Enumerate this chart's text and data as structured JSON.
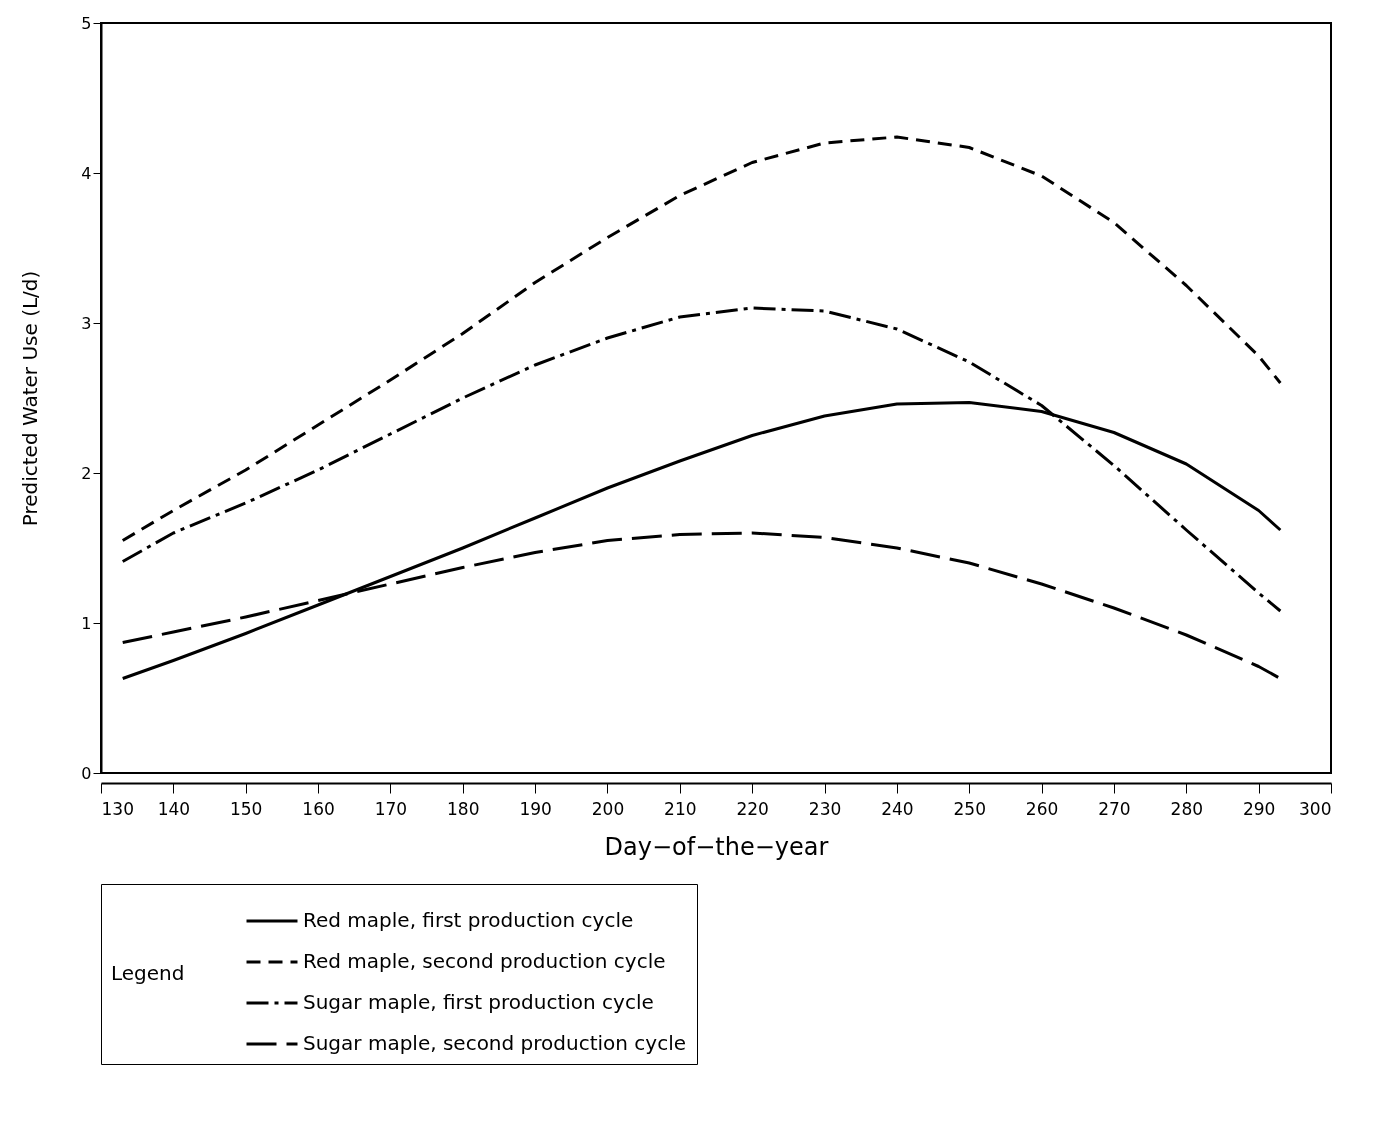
{
  "chart_data": {
    "type": "line",
    "xlabel": "Day−of−the−year",
    "ylabel": "Predicted Water Use (L/d)",
    "legend_title": "Legend",
    "legend": "bottom",
    "grid": false,
    "marker": "none",
    "xlim": [
      130,
      300
    ],
    "xticks": [
      130,
      140,
      150,
      160,
      170,
      180,
      190,
      200,
      210,
      220,
      230,
      240,
      250,
      260,
      270,
      280,
      290,
      300
    ],
    "ylim": [
      0,
      5
    ],
    "yticks": [
      0,
      1,
      2,
      3,
      4,
      5
    ],
    "x": [
      133,
      140,
      150,
      160,
      170,
      180,
      190,
      200,
      210,
      220,
      230,
      240,
      250,
      260,
      270,
      280,
      290,
      293
    ],
    "series": [
      {
        "name": "Red maple, first production cycle",
        "color": "#000000",
        "line_style": "solid",
        "values": [
          0.63,
          0.75,
          0.93,
          1.12,
          1.31,
          1.5,
          1.7,
          1.9,
          2.08,
          2.25,
          2.38,
          2.46,
          2.47,
          2.41,
          2.27,
          2.06,
          1.75,
          1.62
        ]
      },
      {
        "name": "Red maple, second production cycle",
        "color": "#000000",
        "line_style": "dashed",
        "values": [
          1.55,
          1.75,
          2.02,
          2.32,
          2.62,
          2.93,
          3.27,
          3.57,
          3.85,
          4.07,
          4.2,
          4.24,
          4.17,
          3.98,
          3.67,
          3.25,
          2.78,
          2.6
        ]
      },
      {
        "name": "Sugar maple, first production cycle",
        "color": "#000000",
        "line_style": "dashdot",
        "values": [
          1.41,
          1.6,
          1.8,
          2.02,
          2.26,
          2.5,
          2.72,
          2.9,
          3.04,
          3.1,
          3.08,
          2.96,
          2.74,
          2.45,
          2.05,
          1.62,
          1.2,
          1.08
        ]
      },
      {
        "name": "Sugar maple, second production cycle",
        "color": "#000000",
        "line_style": "longdash",
        "values": [
          0.87,
          0.94,
          1.04,
          1.15,
          1.26,
          1.37,
          1.47,
          1.55,
          1.59,
          1.6,
          1.57,
          1.5,
          1.4,
          1.26,
          1.1,
          0.92,
          0.71,
          0.63
        ]
      }
    ]
  }
}
